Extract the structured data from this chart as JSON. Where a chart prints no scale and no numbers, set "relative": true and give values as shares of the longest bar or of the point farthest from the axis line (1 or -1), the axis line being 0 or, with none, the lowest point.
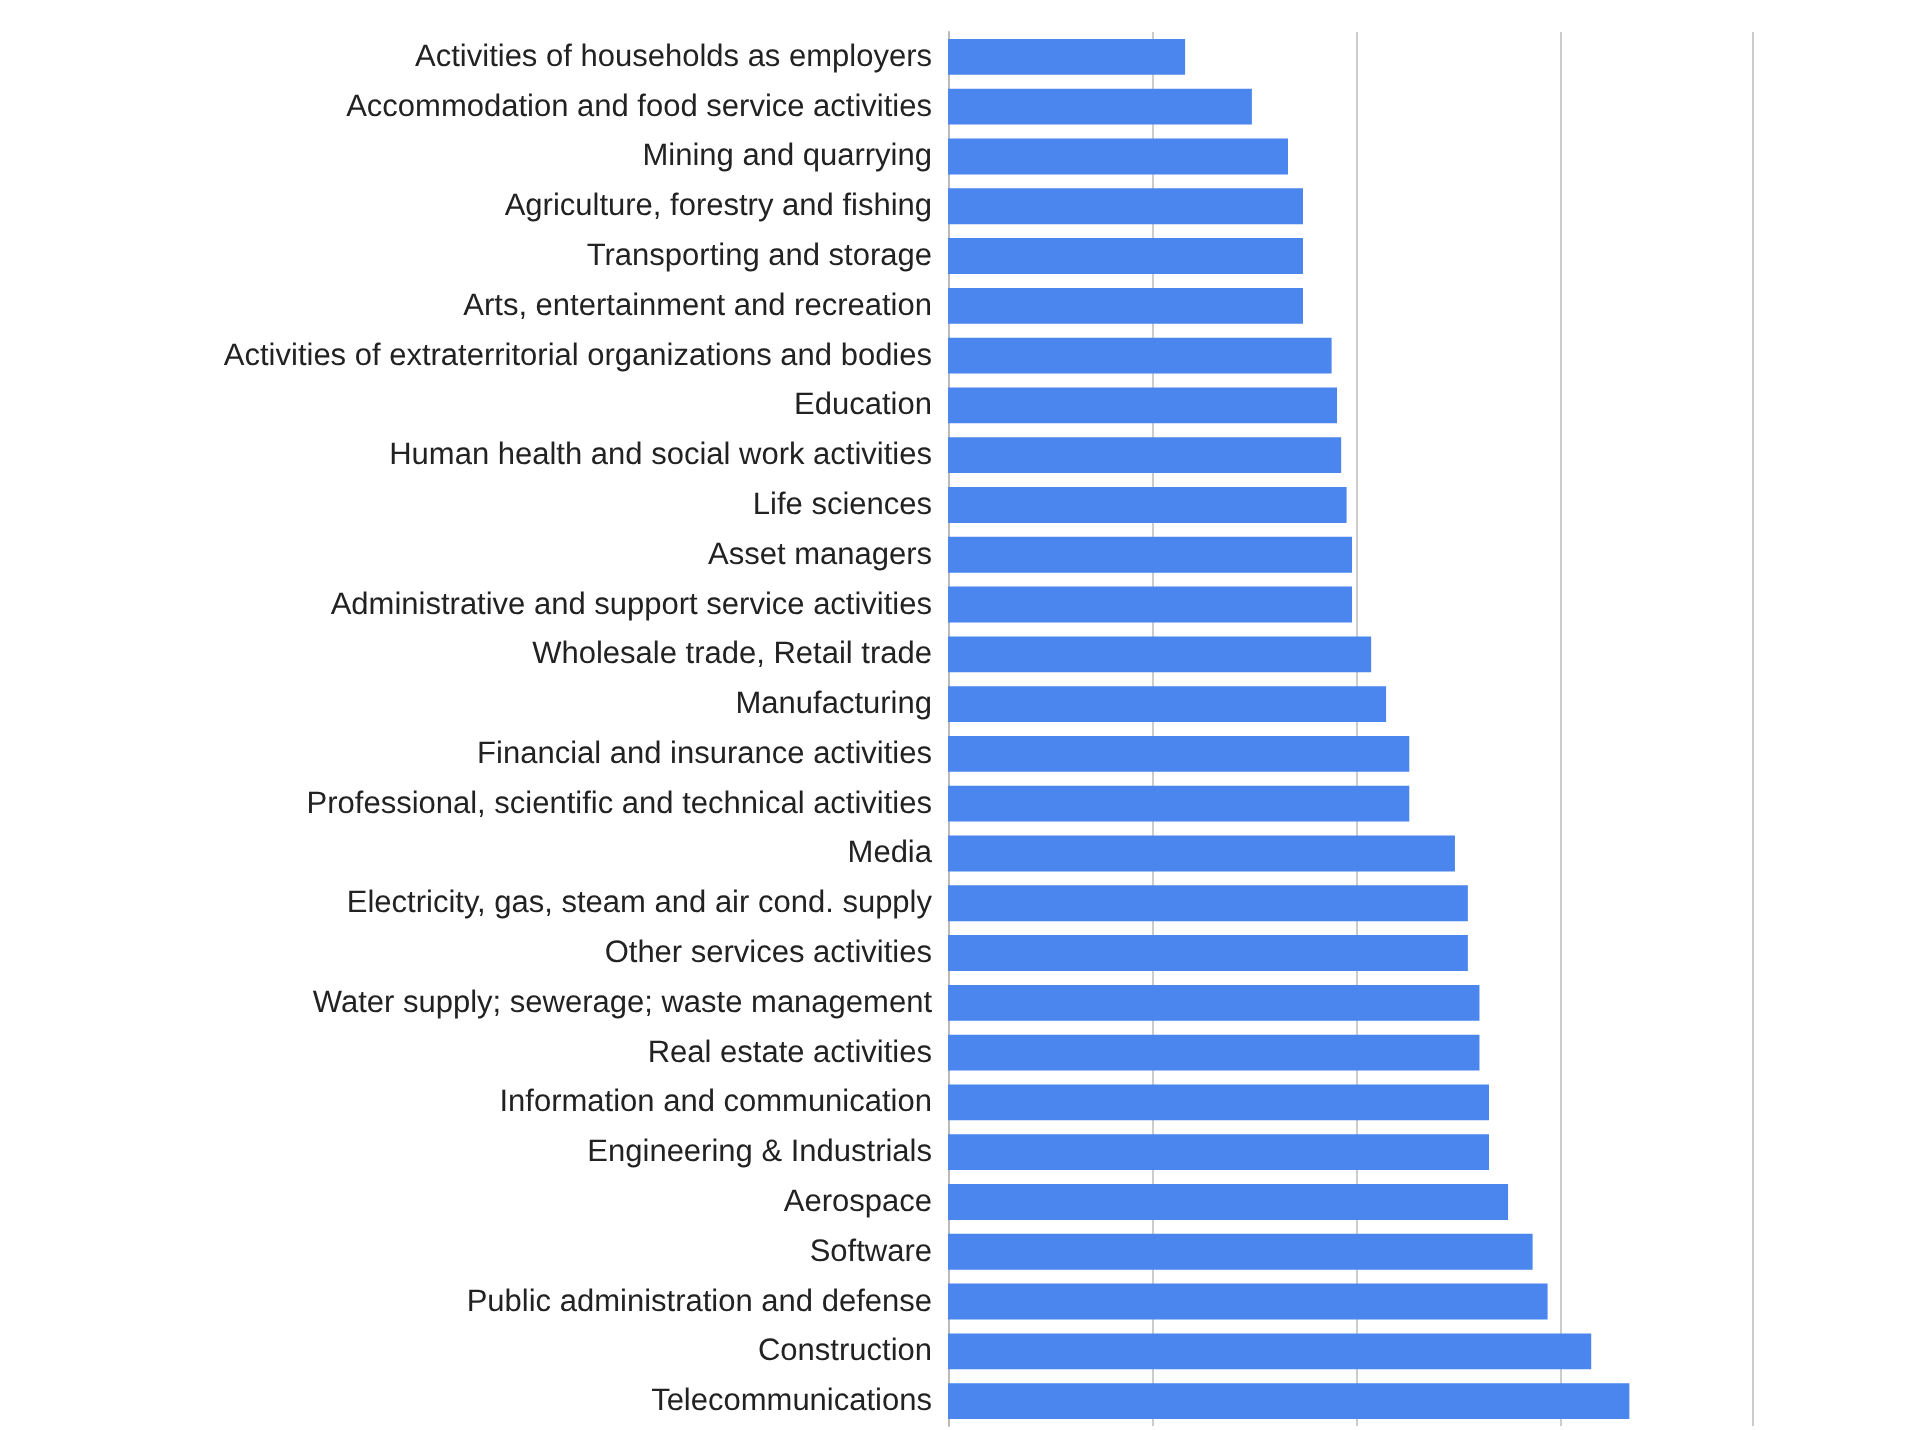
{
  "chart_data": {
    "type": "bar",
    "orientation": "horizontal",
    "relative": true,
    "grid": "x",
    "color": "#4a86ee",
    "categories": [
      "Activities of households as employers",
      "Accommodation and food service activities",
      "Mining and quarrying",
      "Agriculture, forestry and fishing",
      "Transporting and storage",
      "Arts, entertainment and recreation",
      "Activities of extraterritorial organizations and bodies",
      "Education",
      "Human health and social work activities",
      "Life sciences",
      "Asset managers",
      "Administrative and support service activities",
      "Wholesale trade, Retail trade",
      "Manufacturing",
      "Financial and insurance activities",
      "Professional, scientific and technical activities",
      "Media",
      "Electricity, gas, steam and air cond. supply",
      "Other services activities",
      "Water supply; sewerage; waste management",
      "Real estate activities",
      "Information and communication",
      "Engineering & Industrials",
      "Aerospace",
      "Software",
      "Public administration and defense",
      "Construction",
      "Telecommunications"
    ],
    "values": [
      0.348,
      0.446,
      0.499,
      0.521,
      0.521,
      0.521,
      0.563,
      0.571,
      0.577,
      0.585,
      0.593,
      0.593,
      0.621,
      0.643,
      0.677,
      0.677,
      0.744,
      0.763,
      0.763,
      0.78,
      0.78,
      0.794,
      0.794,
      0.822,
      0.858,
      0.88,
      0.944,
      1
    ]
  }
}
